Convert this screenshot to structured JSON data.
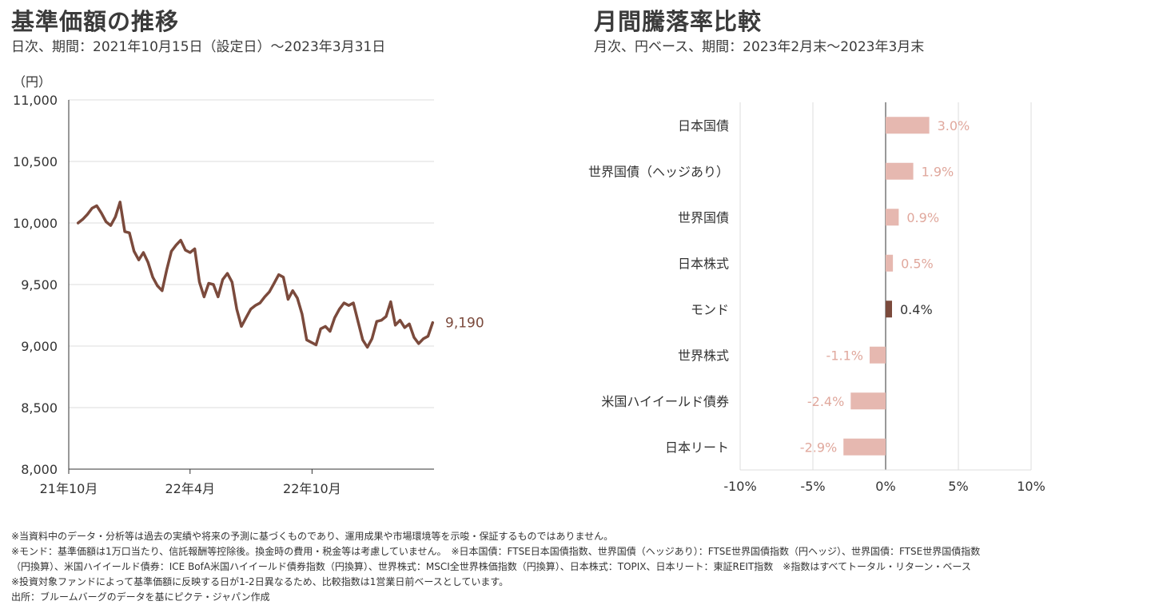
{
  "colors": {
    "line": "#7b4a3c",
    "bar_highlight": "#7b4a3c",
    "bar_other": "#e6b8b0",
    "label_other": "#e0a89d",
    "label_highlight": "#333333",
    "grid": "#dcdcdc",
    "axis": "#333333"
  },
  "left_panel": {
    "title": "基準価額の推移",
    "subtitle": "日次、期間：2021年10月15日（設定日）～2023年3月31日"
  },
  "right_panel": {
    "title": "月間騰落率比較",
    "subtitle": "月次、円ベース、期間：2023年2月末～2023年3月末"
  },
  "chart_data": [
    {
      "type": "line",
      "unit_label": "（円）",
      "ylim": [
        8000,
        11000
      ],
      "yticks": [
        "8,000",
        "8,500",
        "9,000",
        "9,500",
        "10,000",
        "10,500",
        "11,000"
      ],
      "xticks": [
        "21年10月",
        "22年4月",
        "22年10月"
      ],
      "grid": true,
      "end_label": "9,190",
      "series": [
        {
          "x": [
            "2021-10-15",
            "2021-10-22",
            "2021-10-29",
            "2021-11-05",
            "2021-11-12",
            "2021-11-19",
            "2021-11-26",
            "2021-12-03",
            "2021-12-10",
            "2021-12-17",
            "2021-12-24",
            "2021-12-31",
            "2022-01-07",
            "2022-01-14",
            "2022-01-21",
            "2022-01-28",
            "2022-02-04",
            "2022-02-11",
            "2022-02-18",
            "2022-02-25",
            "2022-03-04",
            "2022-03-11",
            "2022-03-18",
            "2022-03-25",
            "2022-04-01",
            "2022-04-08",
            "2022-04-15",
            "2022-04-22",
            "2022-04-29",
            "2022-05-06",
            "2022-05-13",
            "2022-05-20",
            "2022-05-27",
            "2022-06-03",
            "2022-06-10",
            "2022-06-17",
            "2022-06-24",
            "2022-07-01",
            "2022-07-08",
            "2022-07-15",
            "2022-07-22",
            "2022-07-29",
            "2022-08-05",
            "2022-08-12",
            "2022-08-19",
            "2022-08-26",
            "2022-09-02",
            "2022-09-09",
            "2022-09-16",
            "2022-09-23",
            "2022-09-30",
            "2022-10-07",
            "2022-10-14",
            "2022-10-21",
            "2022-10-28",
            "2022-11-04",
            "2022-11-11",
            "2022-11-18",
            "2022-11-25",
            "2022-12-02",
            "2022-12-09",
            "2022-12-16",
            "2022-12-23",
            "2022-12-30",
            "2023-01-06",
            "2023-01-13",
            "2023-01-20",
            "2023-01-27",
            "2023-02-03",
            "2023-02-10",
            "2023-02-17",
            "2023-02-24",
            "2023-03-03",
            "2023-03-10",
            "2023-03-17",
            "2023-03-24",
            "2023-03-31"
          ],
          "y": [
            10000,
            10030,
            10070,
            10120,
            10140,
            10080,
            10010,
            9980,
            10050,
            10170,
            9930,
            9920,
            9770,
            9700,
            9760,
            9680,
            9560,
            9490,
            9450,
            9620,
            9770,
            9820,
            9860,
            9780,
            9760,
            9790,
            9520,
            9400,
            9510,
            9500,
            9400,
            9540,
            9590,
            9520,
            9300,
            9160,
            9230,
            9300,
            9330,
            9350,
            9400,
            9440,
            9510,
            9580,
            9560,
            9380,
            9450,
            9390,
            9260,
            9050,
            9030,
            9010,
            9140,
            9160,
            9120,
            9230,
            9300,
            9350,
            9330,
            9350,
            9200,
            9050,
            8990,
            9060,
            9200,
            9210,
            9240,
            9360,
            9170,
            9210,
            9150,
            9180,
            9070,
            9020,
            9060,
            9080,
            9190
          ]
        }
      ]
    },
    {
      "type": "bar",
      "orientation": "horizontal",
      "categories": [
        "日本国債",
        "世界国債（ヘッジあり）",
        "世界国債",
        "日本株式",
        "モンド",
        "世界株式",
        "米国ハイイールド債券",
        "日本リート"
      ],
      "values": [
        3.0,
        1.9,
        0.9,
        0.5,
        0.4,
        -1.1,
        -2.4,
        -2.9
      ],
      "value_labels": [
        "3.0%",
        "1.9%",
        "0.9%",
        "0.5%",
        "0.4%",
        "-1.1%",
        "-2.4%",
        "-2.9%"
      ],
      "highlight": "モンド",
      "xlim": [
        -10,
        10
      ],
      "xticks": [
        "-10%",
        "-5%",
        "0%",
        "5%",
        "10%"
      ],
      "grid": true
    }
  ],
  "footnotes": [
    "※当資料中のデータ・分析等は過去の実績や将来の予測に基づくものであり、運用成果や市場環境等を示唆・保証するものではありません。",
    "※モンド：基準価額は1万口当たり、信託報酬等控除後。換金時の費用・税金等は考慮していません。　※日本国債：FTSE日本国債指数、世界国債（ヘッジあり）：FTSE世界国債指数（円ヘッジ）、世界国債：FTSE世界国債指数",
    "（円換算）、米国ハイイールド債券：ICE BofA米国ハイイールド債券指数（円換算）、世界株式：MSCI全世界株価指数（円換算）、日本株式：TOPIX、日本リート：東証REIT指数　※指数はすべてトータル・リターン・ベース",
    "※投資対象ファンドによって基準価額に反映する日が1-2日異なるため、比較指数は1営業日前ベースとしています。",
    "出所：ブルームバーグのデータを基にピクテ・ジャパン作成"
  ]
}
